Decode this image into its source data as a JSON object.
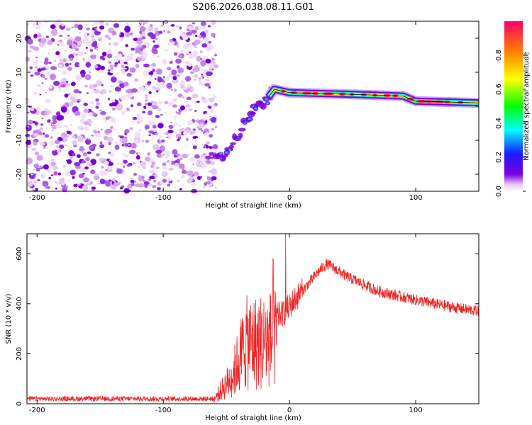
{
  "title": "S206.2026.038.08.11.G01",
  "chart_data": [
    {
      "type": "heatmap",
      "xlabel": "Height of straight line (km)",
      "ylabel": "Frequency (Hz)",
      "xlim": [
        -208,
        150
      ],
      "ylim": [
        -25,
        25
      ],
      "xticks": [
        -200,
        -100,
        0,
        100
      ],
      "yticks": [
        -20,
        -10,
        0,
        10,
        20
      ],
      "colorbar": {
        "label": "Normalized spectral amplitude",
        "range": [
          0,
          1
        ],
        "ticks": [
          "0.0",
          "0.2",
          "0.4",
          "0.6",
          "0.8"
        ]
      },
      "noise_region_km": [
        -208,
        -58
      ],
      "ridge": [
        {
          "x": -58,
          "y": -14
        },
        {
          "x": -52,
          "y": -14
        },
        {
          "x": -46,
          "y": -12
        },
        {
          "x": -40,
          "y": -8
        },
        {
          "x": -34,
          "y": -4
        },
        {
          "x": -28,
          "y": -1
        },
        {
          "x": -22,
          "y": 0
        },
        {
          "x": -16,
          "y": 3
        },
        {
          "x": -12,
          "y": 5
        },
        {
          "x": 0,
          "y": 4
        },
        {
          "x": 50,
          "y": 3.5
        },
        {
          "x": 90,
          "y": 3
        },
        {
          "x": 100,
          "y": 1.5
        },
        {
          "x": 150,
          "y": 1
        }
      ]
    },
    {
      "type": "line",
      "xlabel": "Height of straight line (km)",
      "ylabel": "SNR (10 * v/v)",
      "xlim": [
        -208,
        150
      ],
      "ylim": [
        0,
        680
      ],
      "xticks": [
        -200,
        -100,
        0,
        100
      ],
      "yticks": [
        0,
        200,
        400,
        600
      ],
      "series": [
        {
          "color": "#ee2222",
          "envelope": [
            {
              "x": -208,
              "y": 20
            },
            {
              "x": -100,
              "y": 20
            },
            {
              "x": -60,
              "y": 20
            },
            {
              "x": -45,
              "y": 150
            },
            {
              "x": -35,
              "y": 320
            },
            {
              "x": -20,
              "y": 330
            },
            {
              "x": -5,
              "y": 360
            },
            {
              "x": 10,
              "y": 450
            },
            {
              "x": 25,
              "y": 540
            },
            {
              "x": 30,
              "y": 560
            },
            {
              "x": 45,
              "y": 510
            },
            {
              "x": 70,
              "y": 450
            },
            {
              "x": 100,
              "y": 415
            },
            {
              "x": 130,
              "y": 385
            },
            {
              "x": 150,
              "y": 370
            }
          ],
          "spikes": [
            {
              "x": -3,
              "y": 680
            },
            {
              "x": -13,
              "y": 580
            }
          ]
        }
      ]
    }
  ]
}
